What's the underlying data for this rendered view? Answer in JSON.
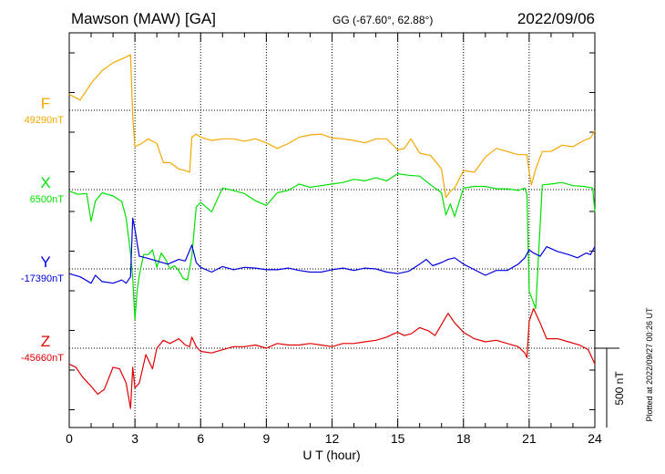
{
  "header": {
    "station": "Mawson (MAW)  [GA]",
    "coords": "GG (-67.60°,  62.88°)",
    "date": "2022/09/06"
  },
  "footer": {
    "plotted": "Plotted at 2022/09/27 00:26 UT",
    "scale_label": "500 nT"
  },
  "chart_data": {
    "type": "line",
    "xlabel": "U T (hour)",
    "xlim": [
      0,
      24
    ],
    "xticks": [
      0,
      3,
      6,
      9,
      12,
      15,
      18,
      21,
      24
    ],
    "grid": true,
    "scale_bar_nT": 500,
    "series": [
      {
        "name": "F",
        "baseline_label": "49290nT",
        "baseline_nT": 49290,
        "color": "#f5a800",
        "x": [
          0,
          0.5,
          1,
          1.5,
          2,
          2.5,
          2.8,
          2.9,
          3,
          3.3,
          3.6,
          4,
          4.3,
          4.6,
          5,
          5.3,
          5.5,
          5.6,
          5.8,
          6,
          6.5,
          7,
          7.5,
          8,
          8.5,
          9,
          9.5,
          10,
          10.5,
          11,
          11.5,
          12,
          12.5,
          13,
          13.5,
          14,
          14.5,
          15,
          15.3,
          15.6,
          16,
          16.5,
          17,
          17.2,
          17.4,
          17.6,
          18,
          18.5,
          19,
          19.5,
          20,
          20.5,
          20.9,
          21,
          21.1,
          21.3,
          21.6,
          22,
          22.5,
          23,
          23.5,
          23.8,
          24
        ],
        "y": [
          49390,
          49355,
          49460,
          49540,
          49590,
          49620,
          49640,
          49250,
          49060,
          49080,
          49110,
          49080,
          48960,
          48960,
          48920,
          48910,
          48900,
          49120,
          49140,
          49120,
          49100,
          49110,
          49110,
          49095,
          49110,
          49085,
          49050,
          49080,
          49120,
          49135,
          49140,
          49115,
          49110,
          49100,
          49085,
          49110,
          49110,
          49040,
          49050,
          49110,
          49020,
          49005,
          48920,
          48740,
          48780,
          48800,
          48910,
          48900,
          48995,
          49050,
          49030,
          49010,
          49010,
          48900,
          48820,
          48920,
          49030,
          49030,
          49070,
          49060,
          49100,
          49115,
          49160
        ]
      },
      {
        "name": "X",
        "baseline_label": "6500nT",
        "baseline_nT": 6500,
        "color": "#00e000",
        "x": [
          0,
          0.4,
          0.8,
          1,
          1.2,
          1.5,
          2,
          2.4,
          2.6,
          2.8,
          2.9,
          3,
          3.1,
          3.2,
          3.4,
          3.6,
          3.8,
          4,
          4.2,
          4.4,
          4.6,
          4.8,
          5,
          5.2,
          5.4,
          5.6,
          5.8,
          6,
          6.5,
          7,
          7.5,
          8,
          8.5,
          9,
          9.5,
          10,
          10.5,
          11,
          11.5,
          12,
          12.5,
          13,
          13.5,
          14,
          14.5,
          15,
          15.5,
          16,
          16.5,
          17,
          17.2,
          17.4,
          17.6,
          18,
          18.5,
          19,
          19.5,
          20,
          20.5,
          20.8,
          20.9,
          21,
          21.3,
          21.6,
          22,
          22.5,
          23,
          23.5,
          23.9,
          24
        ],
        "y": [
          6490,
          6470,
          6475,
          6300,
          6430,
          6480,
          6460,
          6425,
          6320,
          6100,
          5940,
          5680,
          5860,
          5960,
          6090,
          6090,
          6120,
          6010,
          6100,
          6060,
          6000,
          6020,
          5990,
          5940,
          5930,
          6080,
          6390,
          6420,
          6360,
          6510,
          6495,
          6475,
          6430,
          6400,
          6480,
          6495,
          6535,
          6515,
          6525,
          6535,
          6545,
          6565,
          6555,
          6575,
          6555,
          6600,
          6590,
          6585,
          6530,
          6480,
          6340,
          6410,
          6330,
          6510,
          6520,
          6520,
          6505,
          6505,
          6495,
          6510,
          6470,
          5860,
          5750,
          6530,
          6535,
          6545,
          6525,
          6520,
          6510,
          6360
        ]
      },
      {
        "name": "Y",
        "baseline_label": "-17390nT",
        "baseline_nT": -17390,
        "color": "#0000e0",
        "x": [
          0,
          0.5,
          1,
          1.2,
          1.5,
          2,
          2.4,
          2.6,
          2.8,
          2.9,
          3,
          3.2,
          3.5,
          4,
          4.5,
          5,
          5.3,
          5.6,
          5.8,
          6,
          6.5,
          7,
          7.5,
          8,
          8.5,
          9,
          9.5,
          10,
          10.5,
          11,
          11.5,
          12,
          12.5,
          13,
          13.5,
          14,
          14.5,
          15,
          15.5,
          16,
          16.3,
          16.6,
          17,
          17.3,
          17.6,
          18,
          18.5,
          19,
          19.5,
          20,
          20.5,
          20.8,
          21,
          21.2,
          21.5,
          21.8,
          22.3,
          22.8,
          23.2,
          23.6,
          23.8,
          24
        ],
        "y": [
          -17420,
          -17440,
          -17480,
          -17430,
          -17470,
          -17480,
          -17460,
          -17480,
          -17440,
          -17070,
          -17140,
          -17310,
          -17320,
          -17340,
          -17360,
          -17330,
          -17340,
          -17240,
          -17350,
          -17380,
          -17410,
          -17375,
          -17395,
          -17380,
          -17385,
          -17395,
          -17395,
          -17385,
          -17400,
          -17410,
          -17410,
          -17395,
          -17385,
          -17400,
          -17385,
          -17390,
          -17410,
          -17420,
          -17405,
          -17360,
          -17330,
          -17370,
          -17350,
          -17330,
          -17320,
          -17360,
          -17395,
          -17430,
          -17400,
          -17400,
          -17360,
          -17320,
          -17270,
          -17290,
          -17310,
          -17250,
          -17280,
          -17300,
          -17320,
          -17290,
          -17300,
          -17250
        ]
      },
      {
        "name": "Z",
        "baseline_label": "-45660nT",
        "baseline_nT": -45660,
        "color": "#e00000",
        "x": [
          0,
          0.3,
          0.6,
          1,
          1.3,
          1.6,
          2,
          2.3,
          2.6,
          2.8,
          2.9,
          3,
          3.2,
          3.5,
          3.8,
          4,
          4.3,
          4.6,
          5,
          5.3,
          5.5,
          5.6,
          5.8,
          6,
          6.5,
          7,
          7.5,
          8,
          8.5,
          9,
          9.5,
          10,
          10.5,
          11,
          11.5,
          12,
          12.5,
          13,
          13.5,
          14,
          14.5,
          14.8,
          15,
          15.3,
          15.6,
          16,
          16.4,
          16.7,
          17,
          17.3,
          17.6,
          18,
          18.5,
          19,
          19.5,
          20,
          20.5,
          20.8,
          20.9,
          21,
          21.2,
          21.5,
          21.8,
          22.3,
          22.8,
          23.3,
          23.7,
          24
        ],
        "y": [
          -45760,
          -45780,
          -45840,
          -45900,
          -45950,
          -45920,
          -45780,
          -45790,
          -45880,
          -46040,
          -45780,
          -45910,
          -45880,
          -45700,
          -45790,
          -45660,
          -45610,
          -45630,
          -45600,
          -45640,
          -45650,
          -45590,
          -45650,
          -45680,
          -45690,
          -45670,
          -45650,
          -45650,
          -45640,
          -45660,
          -45630,
          -45640,
          -45640,
          -45630,
          -45640,
          -45650,
          -45630,
          -45630,
          -45620,
          -45610,
          -45590,
          -45570,
          -45560,
          -45580,
          -45570,
          -45530,
          -45550,
          -45580,
          -45510,
          -45440,
          -45500,
          -45560,
          -45600,
          -45620,
          -45610,
          -45630,
          -45650,
          -45690,
          -45720,
          -45490,
          -45410,
          -45500,
          -45600,
          -45600,
          -45620,
          -45640,
          -45670,
          -45760
        ]
      }
    ]
  }
}
